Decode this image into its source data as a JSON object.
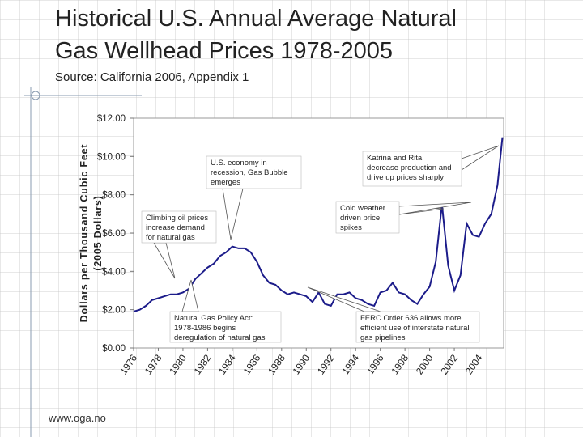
{
  "title": [
    "Historical U.S. Annual Average Natural",
    "Gas Wellhead Prices  1978-2005"
  ],
  "subtitle": "Source: California 2006, Appendix 1",
  "footer": "www.oga.no",
  "chart_data": {
    "type": "line",
    "ylabel": [
      "Dollars per Thousand Cubic Feet",
      "(2005 Dollars)"
    ],
    "color": "#1c1c8a",
    "x": [
      1976.0,
      1976.5,
      1977.0,
      1977.5,
      1978.0,
      1978.5,
      1979.0,
      1979.5,
      1980.0,
      1980.5,
      1981.0,
      1981.5,
      1982.0,
      1982.5,
      1983.0,
      1983.5,
      1984.0,
      1984.5,
      1985.0,
      1985.5,
      1986.0,
      1986.5,
      1987.0,
      1987.5,
      1988.0,
      1988.5,
      1989.0,
      1989.5,
      1990.0,
      1990.5,
      1991.0,
      1991.5,
      1992.0,
      1992.5,
      1993.0,
      1993.5,
      1994.0,
      1994.5,
      1995.0,
      1995.5,
      1996.0,
      1996.5,
      1997.0,
      1997.5,
      1998.0,
      1998.5,
      1999.0,
      1999.5,
      2000.0,
      2000.5,
      2001.0,
      2001.5,
      2002.0,
      2002.5,
      2003.0,
      2003.5,
      2004.0,
      2004.5,
      2005.0,
      2005.5,
      2005.9
    ],
    "values": [
      1.9,
      2.0,
      2.2,
      2.5,
      2.6,
      2.7,
      2.8,
      2.8,
      2.9,
      3.1,
      3.6,
      3.9,
      4.2,
      4.4,
      4.8,
      5.0,
      5.3,
      5.2,
      5.2,
      5.0,
      4.5,
      3.8,
      3.4,
      3.3,
      3.0,
      2.8,
      2.9,
      2.8,
      2.7,
      2.4,
      2.9,
      2.3,
      2.2,
      2.8,
      2.8,
      2.9,
      2.6,
      2.5,
      2.3,
      2.2,
      2.9,
      3.0,
      3.4,
      2.9,
      2.8,
      2.5,
      2.3,
      2.8,
      3.2,
      4.5,
      7.5,
      4.3,
      3.0,
      3.8,
      6.5,
      5.9,
      5.8,
      6.5,
      7.0,
      8.5,
      11.0
    ],
    "xlim": [
      1976,
      2006
    ],
    "xticks": [
      1976,
      1978,
      1980,
      1982,
      1984,
      1986,
      1988,
      1990,
      1992,
      1994,
      1996,
      1998,
      2000,
      2002,
      2004
    ],
    "ylim": [
      0,
      12
    ],
    "yticks": [
      {
        "value": 0,
        "label": "$0.00"
      },
      {
        "value": 2,
        "label": "$2.00"
      },
      {
        "value": 4,
        "label": "$4.00"
      },
      {
        "value": 6,
        "label": "$6.00"
      },
      {
        "value": 8,
        "label": "$8.00"
      },
      {
        "value": 10,
        "label": "$10.00"
      },
      {
        "value": 12,
        "label": "$12.00"
      }
    ],
    "grid": false,
    "annotations": [
      {
        "lines": [
          "U.S. economy in",
          "recession, Gas Bubble",
          "emerges"
        ]
      },
      {
        "lines": [
          "Katrina and Rita",
          "decrease production and",
          "drive up prices sharply"
        ]
      },
      {
        "lines": [
          "Climbing oil prices",
          "increase demand",
          "for natural gas"
        ]
      },
      {
        "lines": [
          "Cold weather",
          "driven price",
          "spikes"
        ]
      },
      {
        "lines": [
          "Natural Gas Policy Act:",
          "1978-1986 begins",
          "deregulation of natural gas"
        ]
      },
      {
        "lines": [
          "FERC Order 636 allows more",
          "efficient use of interstate natural",
          "gas pipelines"
        ]
      }
    ]
  }
}
